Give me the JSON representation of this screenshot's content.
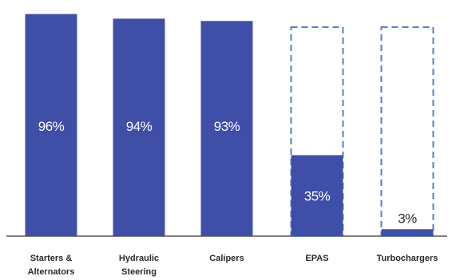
{
  "chart_data": {
    "type": "bar",
    "categories": [
      [
        "Starters &",
        "Alternators"
      ],
      [
        "Hydraulic",
        "Steering"
      ],
      [
        "Calipers"
      ],
      [
        "EPAS"
      ],
      [
        "Turbochargers"
      ]
    ],
    "values": [
      96,
      94,
      93,
      35,
      3
    ],
    "value_labels": [
      "96%",
      "94%",
      "93%",
      "35%",
      "3%"
    ],
    "dashed_outline": [
      false,
      false,
      false,
      true,
      true
    ],
    "ylim": [
      0,
      100
    ],
    "unit": "%",
    "title": "",
    "xlabel": "",
    "ylabel": "",
    "grid": false,
    "legend": "none",
    "bar_color": "#3f4fa8",
    "outline_color": "#5a7fc4",
    "axis_color": "#555555"
  }
}
